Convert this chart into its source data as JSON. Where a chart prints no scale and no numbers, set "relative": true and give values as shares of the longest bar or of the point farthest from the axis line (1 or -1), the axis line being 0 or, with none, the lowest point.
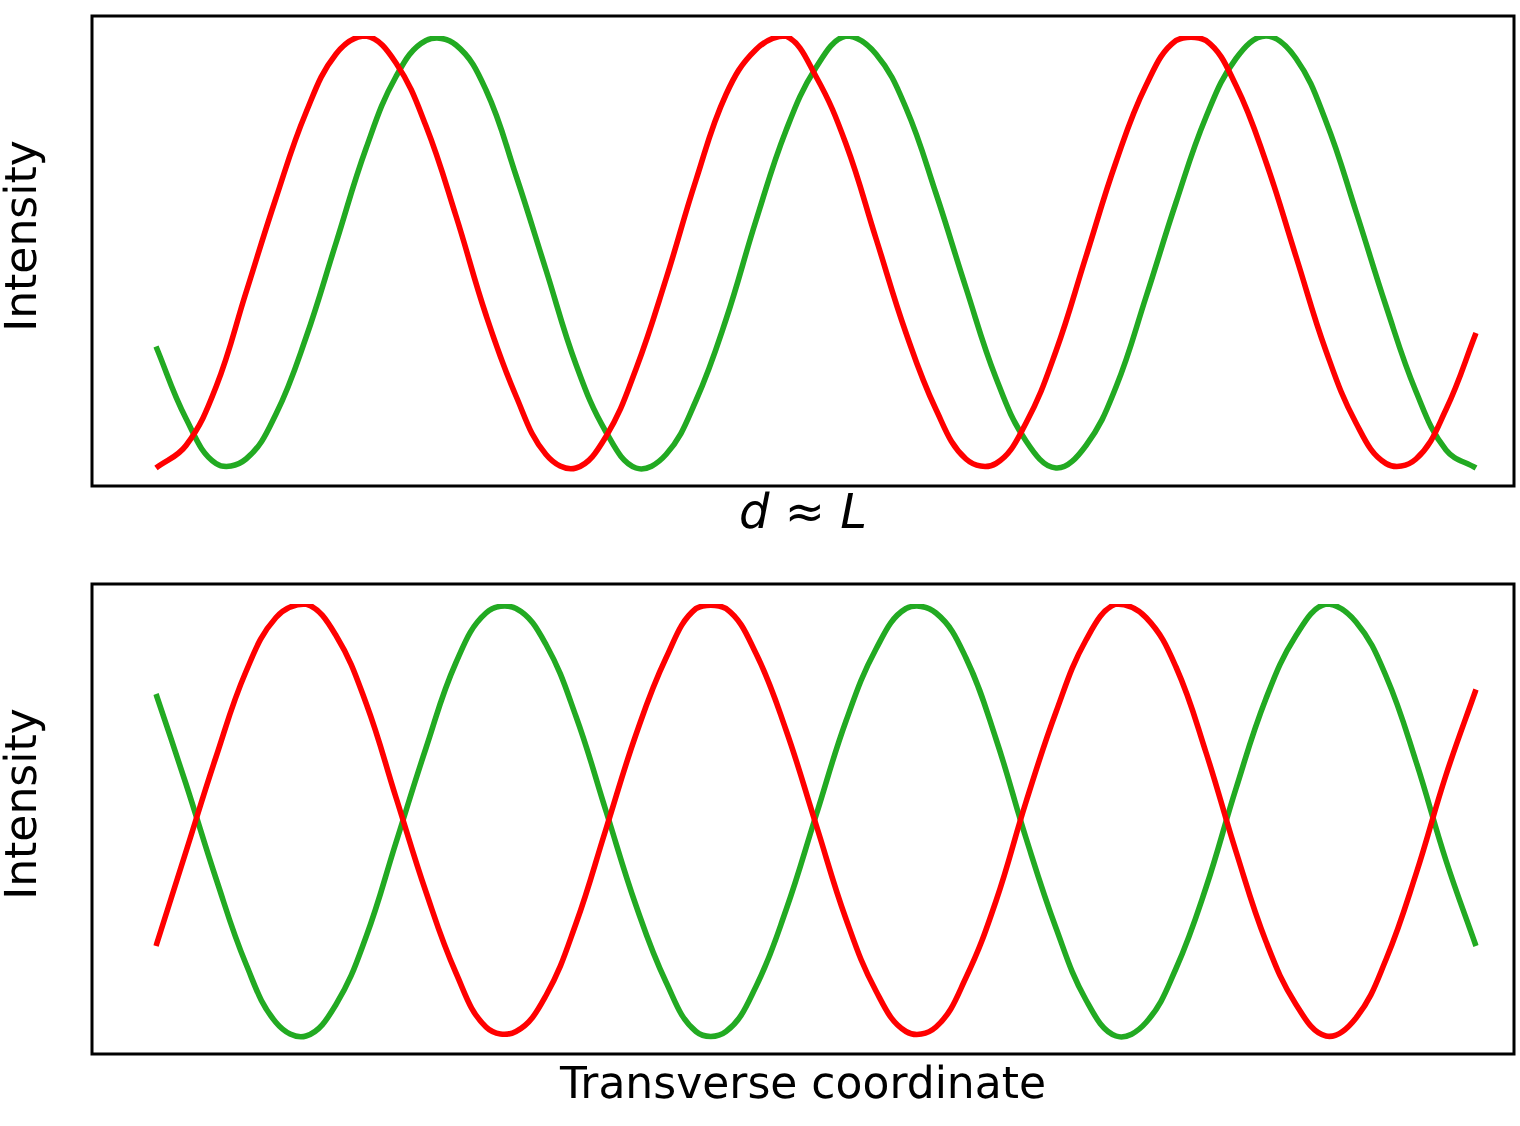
{
  "chart_data": [
    {
      "type": "line",
      "relative": true,
      "xlabel": "d ≈ L",
      "ylabel": "Intensity",
      "categories": [
        null,
        null,
        null,
        null,
        null,
        null,
        null,
        null,
        null,
        null,
        null,
        null,
        null,
        null,
        null,
        null,
        null,
        null,
        null,
        null,
        null,
        null,
        null,
        null,
        null,
        null,
        null,
        null,
        null,
        null,
        null,
        null,
        null,
        null,
        null,
        null,
        null,
        null,
        null,
        null,
        null,
        null,
        null,
        null,
        null
      ],
      "series": [
        {
          "color": "#ff0000",
          "values": [
            0.04,
            0.09,
            0.22,
            0.43,
            0.64,
            0.83,
            0.96,
            1,
            0.94,
            0.8,
            0.6,
            0.38,
            0.2,
            0.07,
            0.04,
            0.11,
            0.26,
            0.46,
            0.68,
            0.87,
            0.97,
            1,
            0.91,
            0.76,
            0.55,
            0.34,
            0.17,
            0.06,
            0.05,
            0.14,
            0.3,
            0.51,
            0.72,
            0.89,
            0.99,
            0.99,
            0.89,
            0.72,
            0.51,
            0.3,
            0.14,
            0.05,
            0.06,
            0.17,
            0.34
          ]
        },
        {
          "color": "#22aa22",
          "values": [
            0.31,
            0.15,
            0.05,
            0.06,
            0.16,
            0.33,
            0.54,
            0.75,
            0.91,
            0.99,
            0.98,
            0.88,
            0.69,
            0.48,
            0.27,
            0.12,
            0.04,
            0.07,
            0.19,
            0.37,
            0.59,
            0.79,
            0.93,
            1,
            0.96,
            0.84,
            0.65,
            0.44,
            0.24,
            0.1,
            0.04,
            0.09,
            0.22,
            0.42,
            0.63,
            0.82,
            0.95,
            1,
            0.95,
            0.81,
            0.61,
            0.4,
            0.21,
            0.08,
            0.04
          ]
        }
      ]
    },
    {
      "type": "line",
      "relative": true,
      "xlabel": "Transverse coordinate",
      "ylabel": "Intensity",
      "categories": [
        null,
        null,
        null,
        null,
        null,
        null,
        null,
        null,
        null,
        null,
        null,
        null,
        null,
        null,
        null,
        null,
        null,
        null,
        null,
        null,
        null,
        null,
        null,
        null,
        null,
        null,
        null,
        null,
        null,
        null,
        null,
        null,
        null,
        null,
        null,
        null,
        null,
        null,
        null,
        null,
        null,
        null,
        null,
        null,
        null
      ],
      "series": [
        {
          "color": "#ff0000",
          "values": [
            0.24,
            0.45,
            0.66,
            0.85,
            0.97,
            1,
            0.93,
            0.78,
            0.57,
            0.36,
            0.18,
            0.06,
            0.05,
            0.13,
            0.29,
            0.5,
            0.71,
            0.88,
            0.99,
            0.99,
            0.89,
            0.72,
            0.51,
            0.3,
            0.14,
            0.05,
            0.06,
            0.17,
            0.34,
            0.56,
            0.76,
            0.92,
            1,
            0.97,
            0.86,
            0.67,
            0.45,
            0.25,
            0.11,
            0.04,
            0.08,
            0.21,
            0.4,
            0.62,
            0.81
          ]
        },
        {
          "color": "#22aa22",
          "values": [
            0.8,
            0.6,
            0.39,
            0.2,
            0.07,
            0.04,
            0.11,
            0.26,
            0.47,
            0.68,
            0.87,
            0.98,
            0.99,
            0.91,
            0.75,
            0.54,
            0.33,
            0.16,
            0.05,
            0.05,
            0.15,
            0.32,
            0.53,
            0.74,
            0.9,
            0.99,
            0.98,
            0.88,
            0.7,
            0.48,
            0.28,
            0.12,
            0.04,
            0.07,
            0.19,
            0.37,
            0.59,
            0.79,
            0.93,
            1,
            0.96,
            0.84,
            0.65,
            0.43,
            0.24
          ]
        }
      ]
    }
  ]
}
